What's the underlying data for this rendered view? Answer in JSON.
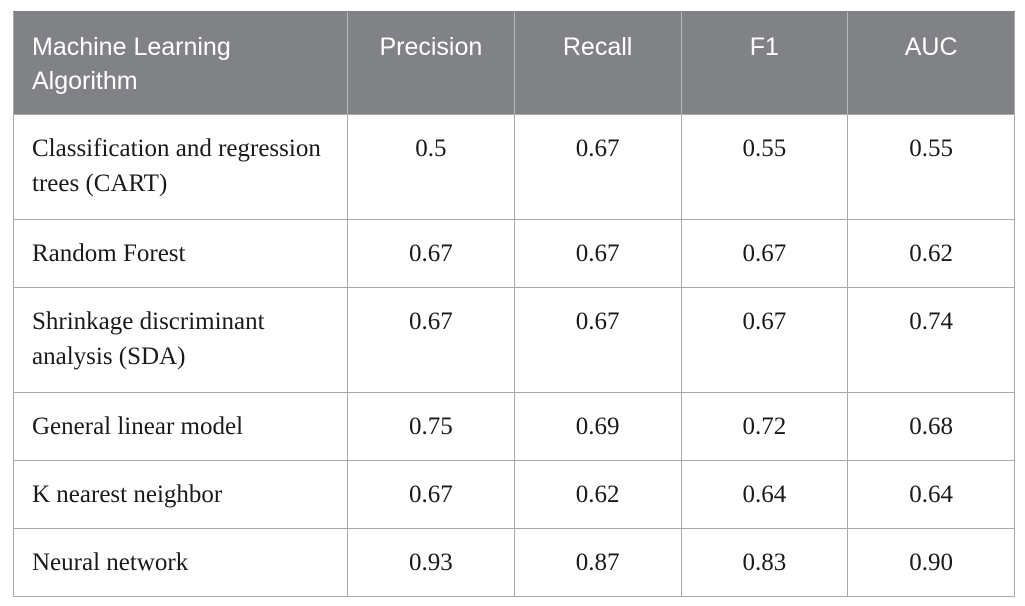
{
  "table": {
    "headers": [
      "Machine Learning Algorithm",
      "Precision",
      "Recall",
      "F1",
      "AUC"
    ],
    "rows": [
      [
        "Classification and regression trees (CART)",
        "0.5",
        "0.67",
        "0.55",
        "0.55"
      ],
      [
        "Random Forest",
        "0.67",
        "0.67",
        "0.67",
        "0.62"
      ],
      [
        "Shrinkage discriminant analysis (SDA)",
        "0.67",
        "0.67",
        "0.67",
        "0.74"
      ],
      [
        "General linear model",
        "0.75",
        "0.69",
        "0.72",
        "0.68"
      ],
      [
        "K nearest neighbor",
        "0.67",
        "0.62",
        "0.64",
        "0.64"
      ],
      [
        "Neural network",
        "0.93",
        "0.87",
        "0.83",
        "0.90"
      ]
    ]
  },
  "colors": {
    "header_bg": "#808285",
    "header_text": "#ffffff",
    "border": "#a7a9ac"
  }
}
